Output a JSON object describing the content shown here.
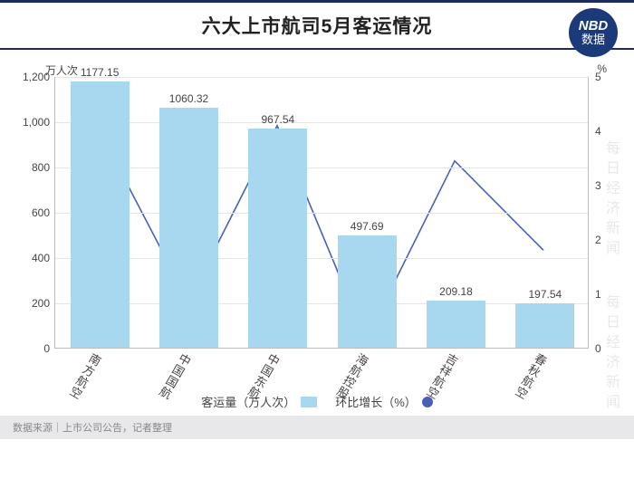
{
  "header": {
    "title": "六大上市航司5月客运情况",
    "badge_top": "NBD",
    "badge_bottom": "数据"
  },
  "chart": {
    "type": "bar+line",
    "y_left_title": "万人次",
    "y_right_title": "%",
    "y_left": {
      "min": 0,
      "max": 1200,
      "step": 200
    },
    "y_right": {
      "min": 0,
      "max": 5,
      "step": 1
    },
    "categories": [
      "南方航空",
      "中国国航",
      "中国东航",
      "海航控股",
      "吉祥航空",
      "春秋航空"
    ],
    "bar_values": [
      1177.15,
      1060.32,
      967.54,
      497.69,
      209.18,
      197.54
    ],
    "line_values": [
      4.0,
      0.85,
      4.1,
      0.15,
      3.45,
      1.8
    ],
    "bar_color": "#a8d8f0",
    "line_color": "#4a5fb8",
    "background": "#ffffff",
    "grid_color": "#e5e5e5",
    "bar_width_ratio": 0.66,
    "legend": {
      "bar_label": "客运量（万人次）",
      "line_label": "环比增长（%）"
    }
  },
  "footer": {
    "source": "数据来源｜上市公司公告，记者整理"
  },
  "watermark": "每日经济新闻"
}
